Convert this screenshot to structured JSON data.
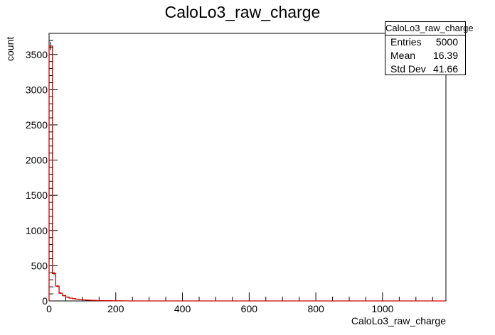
{
  "chart_data": {
    "type": "histogram",
    "title": "CaloLo3_raw_charge",
    "xlabel": "CaloLo3_raw_charge",
    "ylabel": "count",
    "xlim": [
      0,
      1190
    ],
    "ylim": [
      0,
      3800
    ],
    "x_ticks": [
      0,
      200,
      400,
      600,
      800,
      1000
    ],
    "y_ticks": [
      0,
      500,
      1000,
      1500,
      2000,
      2500,
      3000,
      3500
    ],
    "bin_width": 10,
    "bins": [
      {
        "x": 0,
        "y": 3620
      },
      {
        "x": 10,
        "y": 390
      },
      {
        "x": 20,
        "y": 210
      },
      {
        "x": 30,
        "y": 110
      },
      {
        "x": 40,
        "y": 75
      },
      {
        "x": 50,
        "y": 55
      },
      {
        "x": 60,
        "y": 40
      },
      {
        "x": 70,
        "y": 32
      },
      {
        "x": 80,
        "y": 25
      },
      {
        "x": 90,
        "y": 20
      },
      {
        "x": 100,
        "y": 15
      },
      {
        "x": 110,
        "y": 12
      },
      {
        "x": 120,
        "y": 10
      },
      {
        "x": 130,
        "y": 8
      },
      {
        "x": 140,
        "y": 6
      },
      {
        "x": 150,
        "y": 5
      },
      {
        "x": 160,
        "y": 4
      },
      {
        "x": 170,
        "y": 3
      },
      {
        "x": 180,
        "y": 3
      },
      {
        "x": 190,
        "y": 2
      },
      {
        "x": 200,
        "y": 2
      },
      {
        "x": 210,
        "y": 2
      },
      {
        "x": 220,
        "y": 1
      },
      {
        "x": 230,
        "y": 1
      }
    ],
    "line_color": "#cc0000",
    "error_color": "#000000",
    "stats": {
      "name": "CaloLo3_raw_charge",
      "entries_label": "Entries",
      "entries": "5000",
      "mean_label": "Mean",
      "mean": "16.39",
      "std_label": "Std Dev",
      "std": "41.66"
    }
  }
}
